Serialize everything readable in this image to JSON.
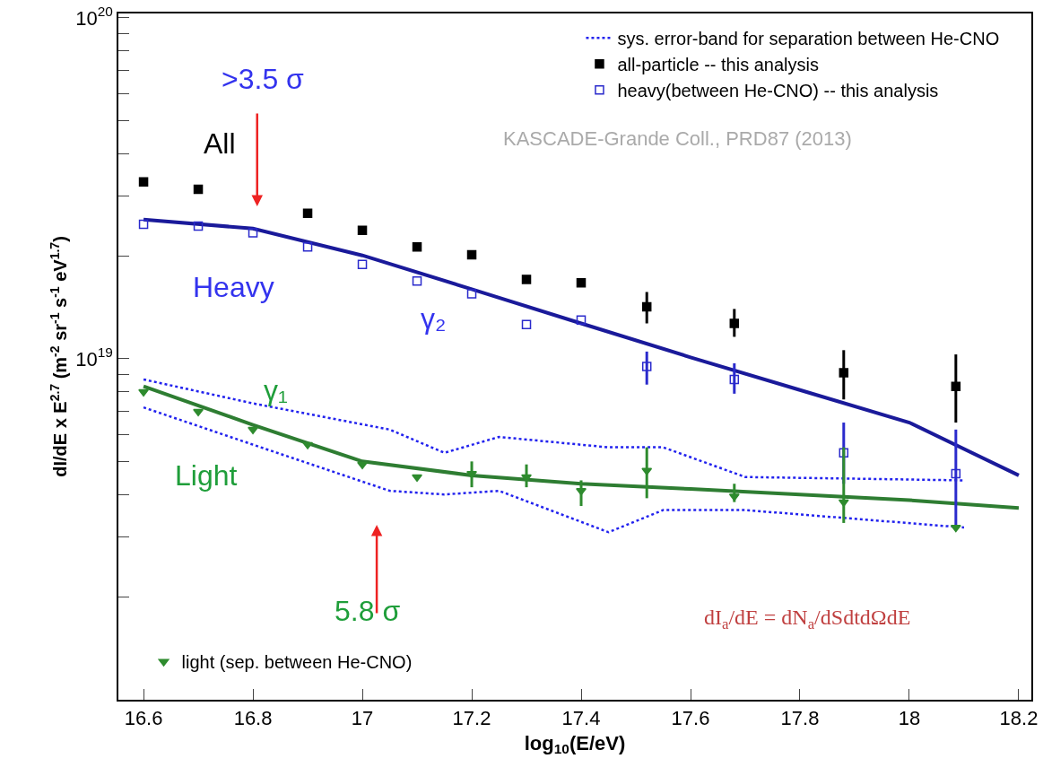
{
  "chart_data": {
    "type": "scatter",
    "xlabel": "log$_{10}$(E/eV)",
    "ylabel": "dI/dE x E$^{2.7}$ (m$^{-2}$ sr$^{-1}$ s$^{-1}$ eV$^{1.7}$)",
    "x": [
      16.6,
      16.7,
      16.8,
      16.9,
      17.0,
      17.1,
      17.2,
      17.3,
      17.4,
      17.52,
      17.68,
      17.88,
      18.085
    ],
    "series": [
      {
        "name": "all-particle -- this analysis",
        "color": "#000000",
        "marker": "square",
        "values": [
          3.3e+19,
          3.14e+19,
          null,
          2.67e+19,
          2.38e+19,
          2.13e+19,
          2.02e+19,
          1.71e+19,
          1.67e+19,
          1.42e+19,
          1.27e+19,
          9.1e+18,
          8.3e+18
        ],
        "errors": [
          null,
          null,
          null,
          null,
          null,
          null,
          null,
          null,
          null,
          [
            1.27e+19,
            1.57e+19
          ],
          [
            1.16e+19,
            1.4e+19
          ],
          [
            7.6e+18,
            1.06e+19
          ],
          [
            6.5e+18,
            1.03e+19
          ]
        ]
      },
      {
        "name": "sys. error-band for separation between He-CNO",
        "type": "line",
        "line_style": "dotted",
        "color": "#2222ee",
        "x": [
          16.6,
          16.8,
          17.05,
          17.15,
          17.25,
          17.45,
          17.55,
          17.7,
          18.1
        ],
        "values": [
          8.7e+18,
          7.4e+18,
          6.2e+18,
          5.3e+18,
          5.9e+18,
          5.5e+18,
          5.5e+18,
          4.5e+18,
          4.4e+18
        ]
      },
      {
        "type": "line",
        "line_style": "dotted",
        "color": "#2222ee",
        "x": [
          16.6,
          16.8,
          17.05,
          17.15,
          17.25,
          17.45,
          17.55,
          17.7,
          18.1
        ],
        "values": [
          7.2e+18,
          5.6e+18,
          4.1e+18,
          4e+18,
          4.1e+18,
          3.1e+18,
          3.6e+18,
          3.6e+18,
          3.2e+18
        ]
      },
      {
        "name": "heavy(between He-CNO) -- this analysis",
        "color": "#2a2acc",
        "marker": "square",
        "values": [
          2.48e+19,
          2.45e+19,
          2.34e+19,
          2.13e+19,
          1.89e+19,
          1.69e+19,
          1.55e+19,
          1.26e+19,
          1.3e+19,
          9.5e+18,
          8.7e+18,
          5.3e+18,
          4.6e+18
        ],
        "errors": [
          null,
          null,
          null,
          null,
          null,
          null,
          null,
          null,
          null,
          [
            8.4e+18,
            1.05e+19
          ],
          [
            7.9e+18,
            9.7e+18
          ],
          [
            4.3e+18,
            6.5e+18
          ],
          [
            3.2e+18,
            6.2e+18
          ]
        ]
      },
      {
        "type": "line",
        "line_style": "solid",
        "color": "#1a1a9a",
        "x": [
          16.6,
          16.8,
          17.0,
          17.2,
          17.4,
          17.6,
          17.8,
          18.0,
          18.2
        ],
        "values": [
          2.56e+19,
          2.41e+19,
          2.01e+19,
          1.6e+19,
          1.27e+19,
          1.01e+19,
          8.1e+18,
          6.5e+18,
          4.55e+18
        ]
      },
      {
        "type": "line",
        "line_style": "solid",
        "color": "#2e7d32",
        "x": [
          16.6,
          16.8,
          17.0,
          17.2,
          17.4,
          17.6,
          17.8,
          18.0,
          18.2
        ],
        "values": [
          8.3e+18,
          6.4e+18,
          5e+18,
          4.55e+18,
          4.3e+18,
          4.15e+18,
          4e+18,
          3.85e+18,
          3.65e+18
        ]
      },
      {
        "name": "light (sep. between He-CNO)",
        "color": "#2e8b2e",
        "marker": "triangle",
        "values": [
          8e+18,
          7e+18,
          6.2e+18,
          5.6e+18,
          4.9e+18,
          4.5e+18,
          4.6e+18,
          4.5e+18,
          4.1e+18,
          4.7e+18,
          3.95e+18,
          3.8e+18,
          3.2e+18
        ],
        "errors": [
          null,
          null,
          null,
          null,
          null,
          null,
          [
            4.2e+18,
            5e+18
          ],
          [
            4.2e+18,
            4.9e+18
          ],
          [
            3.7e+18,
            4.4e+18
          ],
          [
            3.9e+18,
            5.5e+18
          ],
          [
            3.8e+18,
            4.3e+18
          ],
          [
            3.3e+18,
            5.5e+18
          ],
          null
        ]
      }
    ],
    "annotations": [
      ">3.5 σ",
      "All",
      "Heavy",
      "γ₂",
      "γ₁",
      "Light",
      "5.8 σ",
      "KASCADE-Grande Coll., PRD87 (2013)",
      "dI$_{a}$/dE = dN$_{a}$/dSdtdΩdE"
    ],
    "log": "y",
    "xlim": [
      16.554,
      18.223
    ],
    "ylim": [
      1e+18,
      1.03e+20
    ],
    "xticks": [
      16.6,
      16.8,
      {
        "value": 17,
        "label": "17"
      },
      17.2,
      17.4,
      17.6,
      17.8,
      {
        "value": 18,
        "label": "18"
      },
      18.2
    ],
    "yticks": [
      {
        "value": 2e+18,
        "label": null
      },
      {
        "value": 3e+18,
        "label": null
      },
      {
        "value": 4e+18,
        "label": null
      },
      {
        "value": 5e+18,
        "label": null
      },
      {
        "value": 6e+18,
        "label": null
      },
      {
        "value": 7e+18,
        "label": null
      },
      {
        "value": 8e+18,
        "label": null
      },
      {
        "value": 9e+18,
        "label": null
      },
      {
        "value": 1e+19,
        "label": "10$^{19}$"
      },
      {
        "value": 2e+19,
        "label": null
      },
      {
        "value": 3e+19,
        "label": null
      },
      {
        "value": 4e+19,
        "label": null
      },
      {
        "value": 5e+19,
        "label": null
      },
      {
        "value": 6e+19,
        "label": null
      },
      {
        "value": 7e+19,
        "label": null
      },
      {
        "value": 8e+19,
        "label": null
      },
      {
        "value": 9e+19,
        "label": null
      },
      {
        "value": 1e+20,
        "label": "10$^{20}$"
      }
    ],
    "grid": false,
    "legend": "top right"
  }
}
